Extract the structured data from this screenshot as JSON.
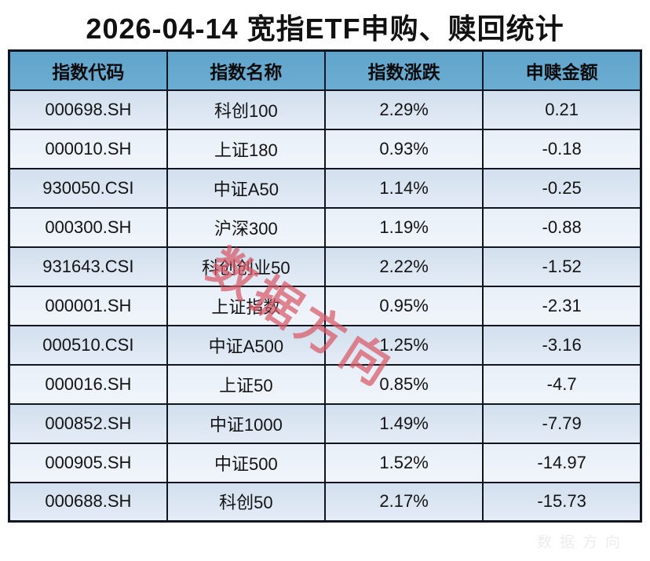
{
  "title": "2026-04-14 宽指ETF申购、赎回统计",
  "chart_data": {
    "type": "table",
    "title": "2026-04-14 宽指ETF申购、赎回统计",
    "columns": [
      "指数代码",
      "指数名称",
      "指数涨跌",
      "申赎金额"
    ],
    "rows": [
      [
        "000698.SH",
        "科创100",
        "2.29%",
        "0.21"
      ],
      [
        "000010.SH",
        "上证180",
        "0.93%",
        "-0.18"
      ],
      [
        "930050.CSI",
        "中证A50",
        "1.14%",
        "-0.25"
      ],
      [
        "000300.SH",
        "沪深300",
        "1.19%",
        "-0.88"
      ],
      [
        "931643.CSI",
        "科创创业50",
        "2.22%",
        "-1.52"
      ],
      [
        "000001.SH",
        "上证指数",
        "0.95%",
        "-2.31"
      ],
      [
        "000510.CSI",
        "中证A500",
        "1.25%",
        "-3.16"
      ],
      [
        "000016.SH",
        "上证50",
        "0.85%",
        "-4.7"
      ],
      [
        "000852.SH",
        "中证1000",
        "1.49%",
        "-7.79"
      ],
      [
        "000905.SH",
        "中证500",
        "1.52%",
        "-14.97"
      ],
      [
        "000688.SH",
        "科创50",
        "2.17%",
        "-15.73"
      ]
    ],
    "column_keys": [
      "index-code",
      "index-name",
      "index-change",
      "subscription-amount"
    ]
  },
  "watermarks": {
    "diagonal_text": "数据方向",
    "diagonal_color": "#d85866",
    "corner_text": "数据方向"
  },
  "colors": {
    "header_bg": "#66a8cd",
    "row_odd_bg": "#d8e3f0",
    "row_even_bg": "#ecf1f9",
    "border": "#10161f",
    "title_text": "#111111"
  }
}
